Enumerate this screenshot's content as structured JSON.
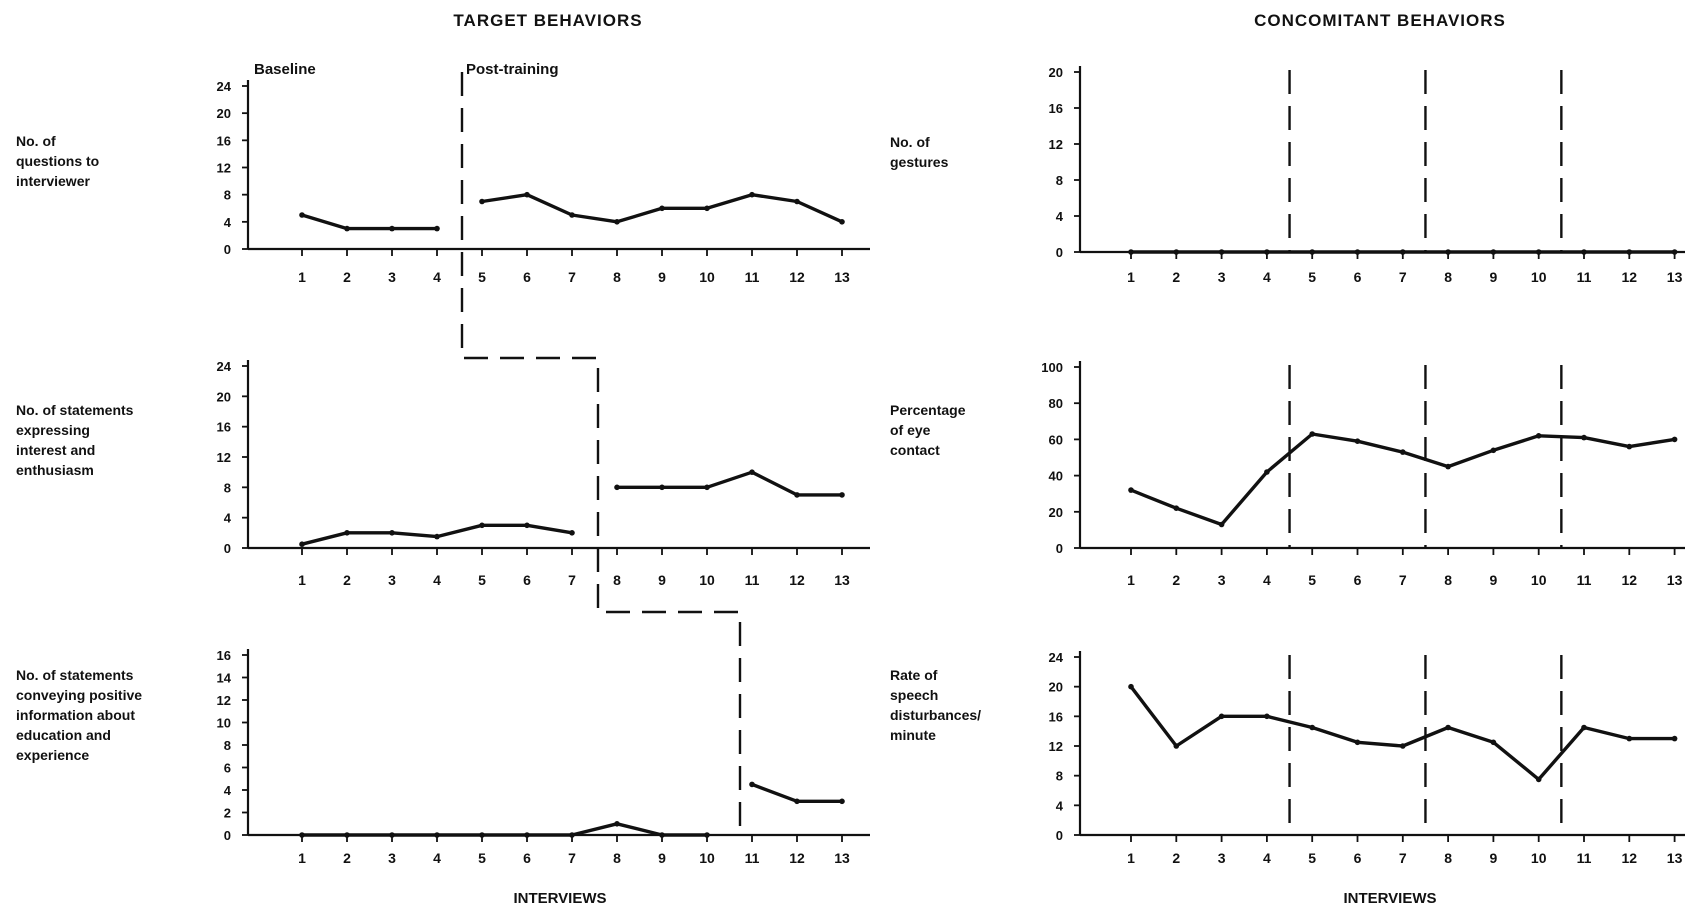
{
  "titles": {
    "left": "TARGET BEHAVIORS",
    "right": "CONCOMITANT BEHAVIORS"
  },
  "phase_labels": {
    "baseline": "Baseline",
    "post": "Post-training"
  },
  "chart_data": [
    {
      "id": "questions",
      "type": "line",
      "ylabel_lines": [
        "No. of",
        "questions to",
        "interviewer"
      ],
      "xlabel": "",
      "x": [
        1,
        2,
        3,
        4,
        5,
        6,
        7,
        8,
        9,
        10,
        11,
        12,
        13
      ],
      "yticks": [
        0,
        4,
        8,
        12,
        16,
        20,
        24
      ],
      "ylim": [
        0,
        24
      ],
      "phase_change_after": 4,
      "series": [
        {
          "values": [
            5,
            3,
            3,
            3,
            7,
            8,
            5,
            4,
            6,
            6,
            8,
            7,
            4
          ]
        }
      ]
    },
    {
      "id": "interest",
      "type": "line",
      "ylabel_lines": [
        "No. of statements",
        "expressing",
        "interest and",
        "enthusiasm"
      ],
      "xlabel": "",
      "x": [
        1,
        2,
        3,
        4,
        5,
        6,
        7,
        8,
        9,
        10,
        11,
        12,
        13
      ],
      "yticks": [
        0,
        4,
        8,
        12,
        16,
        20,
        24
      ],
      "yticklabels": [
        "0",
        "4",
        "8",
        "12",
        "16",
        "20",
        "24"
      ],
      "ylim": [
        0,
        24
      ],
      "phase_change_after": 7,
      "series": [
        {
          "values": [
            0.5,
            2,
            2,
            1.5,
            3,
            3,
            2,
            8,
            8,
            8,
            10,
            7,
            7
          ]
        }
      ]
    },
    {
      "id": "positive-info",
      "type": "line",
      "ylabel_lines": [
        "No. of statements",
        "conveying positive",
        "information about",
        "education and",
        "experience"
      ],
      "xlabel": "INTERVIEWS",
      "x": [
        1,
        2,
        3,
        4,
        5,
        6,
        7,
        8,
        9,
        10,
        11,
        12,
        13
      ],
      "yticks": [
        0,
        2,
        4,
        6,
        8,
        10,
        12,
        14,
        16
      ],
      "ylim": [
        0,
        16
      ],
      "phase_change_after": 10,
      "series": [
        {
          "values": [
            0,
            0,
            0,
            0,
            0,
            0,
            0,
            1,
            0,
            0,
            4.5,
            3,
            3
          ]
        }
      ]
    },
    {
      "id": "gestures",
      "type": "line",
      "ylabel_lines": [
        "No. of",
        "gestures"
      ],
      "xlabel": "",
      "x": [
        1,
        2,
        3,
        4,
        5,
        6,
        7,
        8,
        9,
        10,
        11,
        12,
        13
      ],
      "yticks": [
        0,
        4,
        8,
        12,
        16,
        20
      ],
      "ylim": [
        0,
        20
      ],
      "phase_changes_after": [
        4,
        7,
        10
      ],
      "series": [
        {
          "values": [
            0,
            0,
            0,
            0,
            0,
            0,
            0,
            0,
            0,
            0,
            0,
            0,
            0
          ]
        }
      ]
    },
    {
      "id": "eye-contact",
      "type": "line",
      "ylabel_lines": [
        "Percentage",
        "of eye",
        "contact"
      ],
      "xlabel": "",
      "x": [
        1,
        2,
        3,
        4,
        5,
        6,
        7,
        8,
        9,
        10,
        11,
        12,
        13
      ],
      "yticks": [
        0,
        20,
        40,
        60,
        80,
        100
      ],
      "ylim": [
        0,
        100
      ],
      "phase_changes_after": [
        4,
        7,
        10
      ],
      "series": [
        {
          "values": [
            32,
            22,
            13,
            42,
            63,
            59,
            53,
            45,
            54,
            62,
            61,
            56,
            60
          ]
        }
      ]
    },
    {
      "id": "speech-disturbances",
      "type": "line",
      "ylabel_lines": [
        "Rate of",
        "speech",
        "disturbances/",
        "minute"
      ],
      "xlabel": "INTERVIEWS",
      "x": [
        1,
        2,
        3,
        4,
        5,
        6,
        7,
        8,
        9,
        10,
        11,
        12,
        13
      ],
      "yticks": [
        0,
        4,
        8,
        12,
        16,
        20,
        24
      ],
      "ylim": [
        0,
        24
      ],
      "phase_changes_after": [
        4,
        7,
        10
      ],
      "series": [
        {
          "values": [
            20,
            12,
            16,
            16,
            14.5,
            12.5,
            12,
            14.5,
            12.5,
            7.5,
            14.5,
            13,
            13
          ]
        }
      ]
    }
  ]
}
